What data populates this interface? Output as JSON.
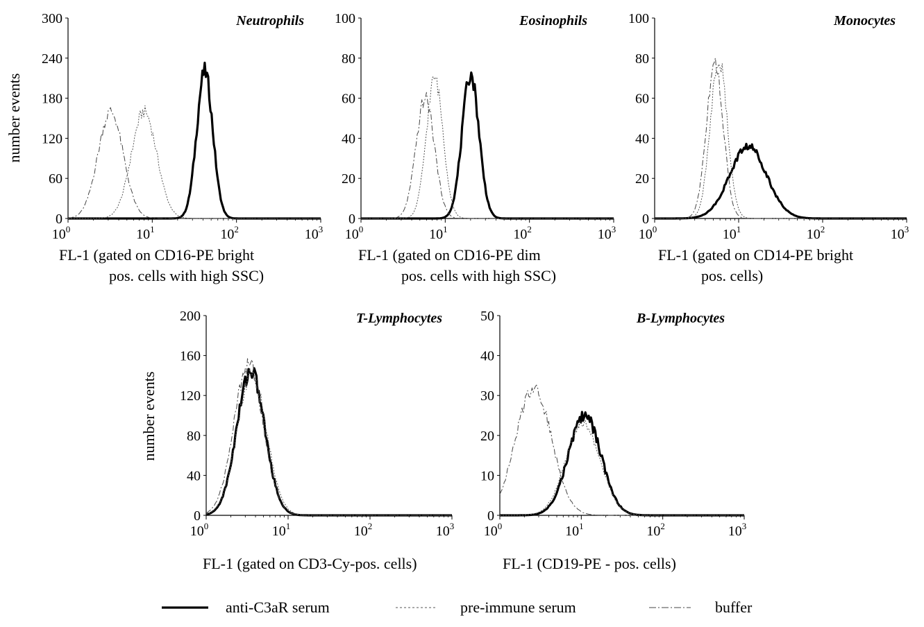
{
  "legend": {
    "items": [
      {
        "label": "anti-C3aR serum",
        "style": "thick-solid"
      },
      {
        "label": "pre-immune serum",
        "style": "dotted"
      },
      {
        "label": "buffer",
        "style": "dash-dot"
      }
    ]
  },
  "chart_data": [
    {
      "type": "line",
      "title": "Neutrophils",
      "ylabel": "number events",
      "xlabel_lines": [
        "FL-1 (gated on CD16-PE bright",
        "pos. cells with high SSC)"
      ],
      "xscale": "log",
      "xlim": [
        1,
        1000
      ],
      "ylim": [
        0,
        300
      ],
      "xticks": [
        {
          "value": 1,
          "label": "10",
          "exp": "0"
        },
        {
          "value": 10,
          "label": "10",
          "exp": "1"
        },
        {
          "value": 100,
          "label": "10",
          "exp": "2"
        },
        {
          "value": 1000,
          "label": "10",
          "exp": "3"
        }
      ],
      "yticks": [
        0,
        60,
        120,
        180,
        240,
        300
      ],
      "series": [
        {
          "style": "thick-solid",
          "peaks": [
            {
              "center": 42,
              "height": 220,
              "width": 0.095
            }
          ]
        },
        {
          "style": "dotted",
          "peaks": [
            {
              "center": 8,
              "height": 160,
              "width": 0.15
            }
          ]
        },
        {
          "style": "dash-dot",
          "peaks": [
            {
              "center": 3.2,
              "height": 160,
              "width": 0.15
            }
          ]
        }
      ]
    },
    {
      "type": "line",
      "title": "Eosinophils",
      "ylabel": "",
      "xlabel_lines": [
        "FL-1 (gated on CD16-PE dim",
        "pos. cells with high SSC)"
      ],
      "xscale": "log",
      "xlim": [
        1,
        1000
      ],
      "ylim": [
        0,
        100
      ],
      "xticks": [
        {
          "value": 1,
          "label": "10",
          "exp": "0"
        },
        {
          "value": 10,
          "label": "10",
          "exp": "1"
        },
        {
          "value": 100,
          "label": "10",
          "exp": "2"
        },
        {
          "value": 1000,
          "label": "10",
          "exp": "3"
        }
      ],
      "yticks": [
        0,
        20,
        40,
        60,
        80,
        100
      ],
      "series": [
        {
          "style": "thick-solid",
          "peaks": [
            {
              "center": 20,
              "height": 72,
              "width": 0.1
            }
          ]
        },
        {
          "style": "dotted",
          "peaks": [
            {
              "center": 7.5,
              "height": 70,
              "width": 0.1
            }
          ]
        },
        {
          "style": "dash-dot",
          "peaks": [
            {
              "center": 5.8,
              "height": 60,
              "width": 0.11
            }
          ]
        }
      ]
    },
    {
      "type": "line",
      "title": "Monocytes",
      "ylabel": "",
      "xlabel_lines": [
        "FL-1 (gated on CD14-PE bright",
        "pos. cells)"
      ],
      "xscale": "log",
      "xlim": [
        1,
        1000
      ],
      "ylim": [
        0,
        100
      ],
      "xticks": [
        {
          "value": 1,
          "label": "10",
          "exp": "0"
        },
        {
          "value": 10,
          "label": "10",
          "exp": "1"
        },
        {
          "value": 100,
          "label": "10",
          "exp": "2"
        },
        {
          "value": 1000,
          "label": "10",
          "exp": "3"
        }
      ],
      "yticks": [
        0,
        20,
        40,
        60,
        80,
        100
      ],
      "series": [
        {
          "style": "thick-solid",
          "peaks": [
            {
              "center": 13,
              "height": 36,
              "width": 0.22
            }
          ]
        },
        {
          "style": "dotted",
          "peaks": [
            {
              "center": 5.8,
              "height": 80,
              "width": 0.1
            }
          ]
        },
        {
          "style": "dash-dot",
          "peaks": [
            {
              "center": 5.2,
              "height": 78,
              "width": 0.1
            }
          ]
        }
      ]
    },
    {
      "type": "line",
      "title": "T-Lymphocytes",
      "ylabel": "number events",
      "xlabel_lines": [
        "FL-1 (gated on CD3-Cy-pos. cells)"
      ],
      "xscale": "log",
      "xlim": [
        1,
        1000
      ],
      "ylim": [
        0,
        200
      ],
      "xticks": [
        {
          "value": 1,
          "label": "10",
          "exp": "0"
        },
        {
          "value": 10,
          "label": "10",
          "exp": "1"
        },
        {
          "value": 100,
          "label": "10",
          "exp": "2"
        },
        {
          "value": 1000,
          "label": "10",
          "exp": "3"
        }
      ],
      "yticks": [
        0,
        40,
        80,
        120,
        160,
        200
      ],
      "series": [
        {
          "style": "thick-solid",
          "peaks": [
            {
              "center": 3.5,
              "height": 145,
              "width": 0.17
            }
          ]
        },
        {
          "style": "dotted",
          "peaks": [
            {
              "center": 3.6,
              "height": 140,
              "width": 0.18
            }
          ]
        },
        {
          "style": "dash-dot",
          "peaks": [
            {
              "center": 3.3,
              "height": 152,
              "width": 0.18
            }
          ]
        }
      ]
    },
    {
      "type": "line",
      "title": "B-Lymphocytes",
      "ylabel": "",
      "xlabel_lines": [
        "FL-1 (CD19-PE - pos. cells)"
      ],
      "xscale": "log",
      "xlim": [
        1,
        1000
      ],
      "ylim": [
        0,
        50
      ],
      "xticks": [
        {
          "value": 1,
          "label": "10",
          "exp": "0"
        },
        {
          "value": 10,
          "label": "10",
          "exp": "1"
        },
        {
          "value": 100,
          "label": "10",
          "exp": "2"
        },
        {
          "value": 1000,
          "label": "10",
          "exp": "3"
        }
      ],
      "yticks": [
        0,
        10,
        20,
        30,
        40,
        50
      ],
      "series": [
        {
          "style": "thick-solid",
          "peaks": [
            {
              "center": 11,
              "height": 25,
              "width": 0.2
            }
          ]
        },
        {
          "style": "dotted",
          "peaks": [
            {
              "center": 10.5,
              "height": 23,
              "width": 0.21
            }
          ]
        },
        {
          "style": "dash-dot",
          "peaks": [
            {
              "center": 2.6,
              "height": 32,
              "width": 0.22
            }
          ]
        }
      ]
    }
  ]
}
